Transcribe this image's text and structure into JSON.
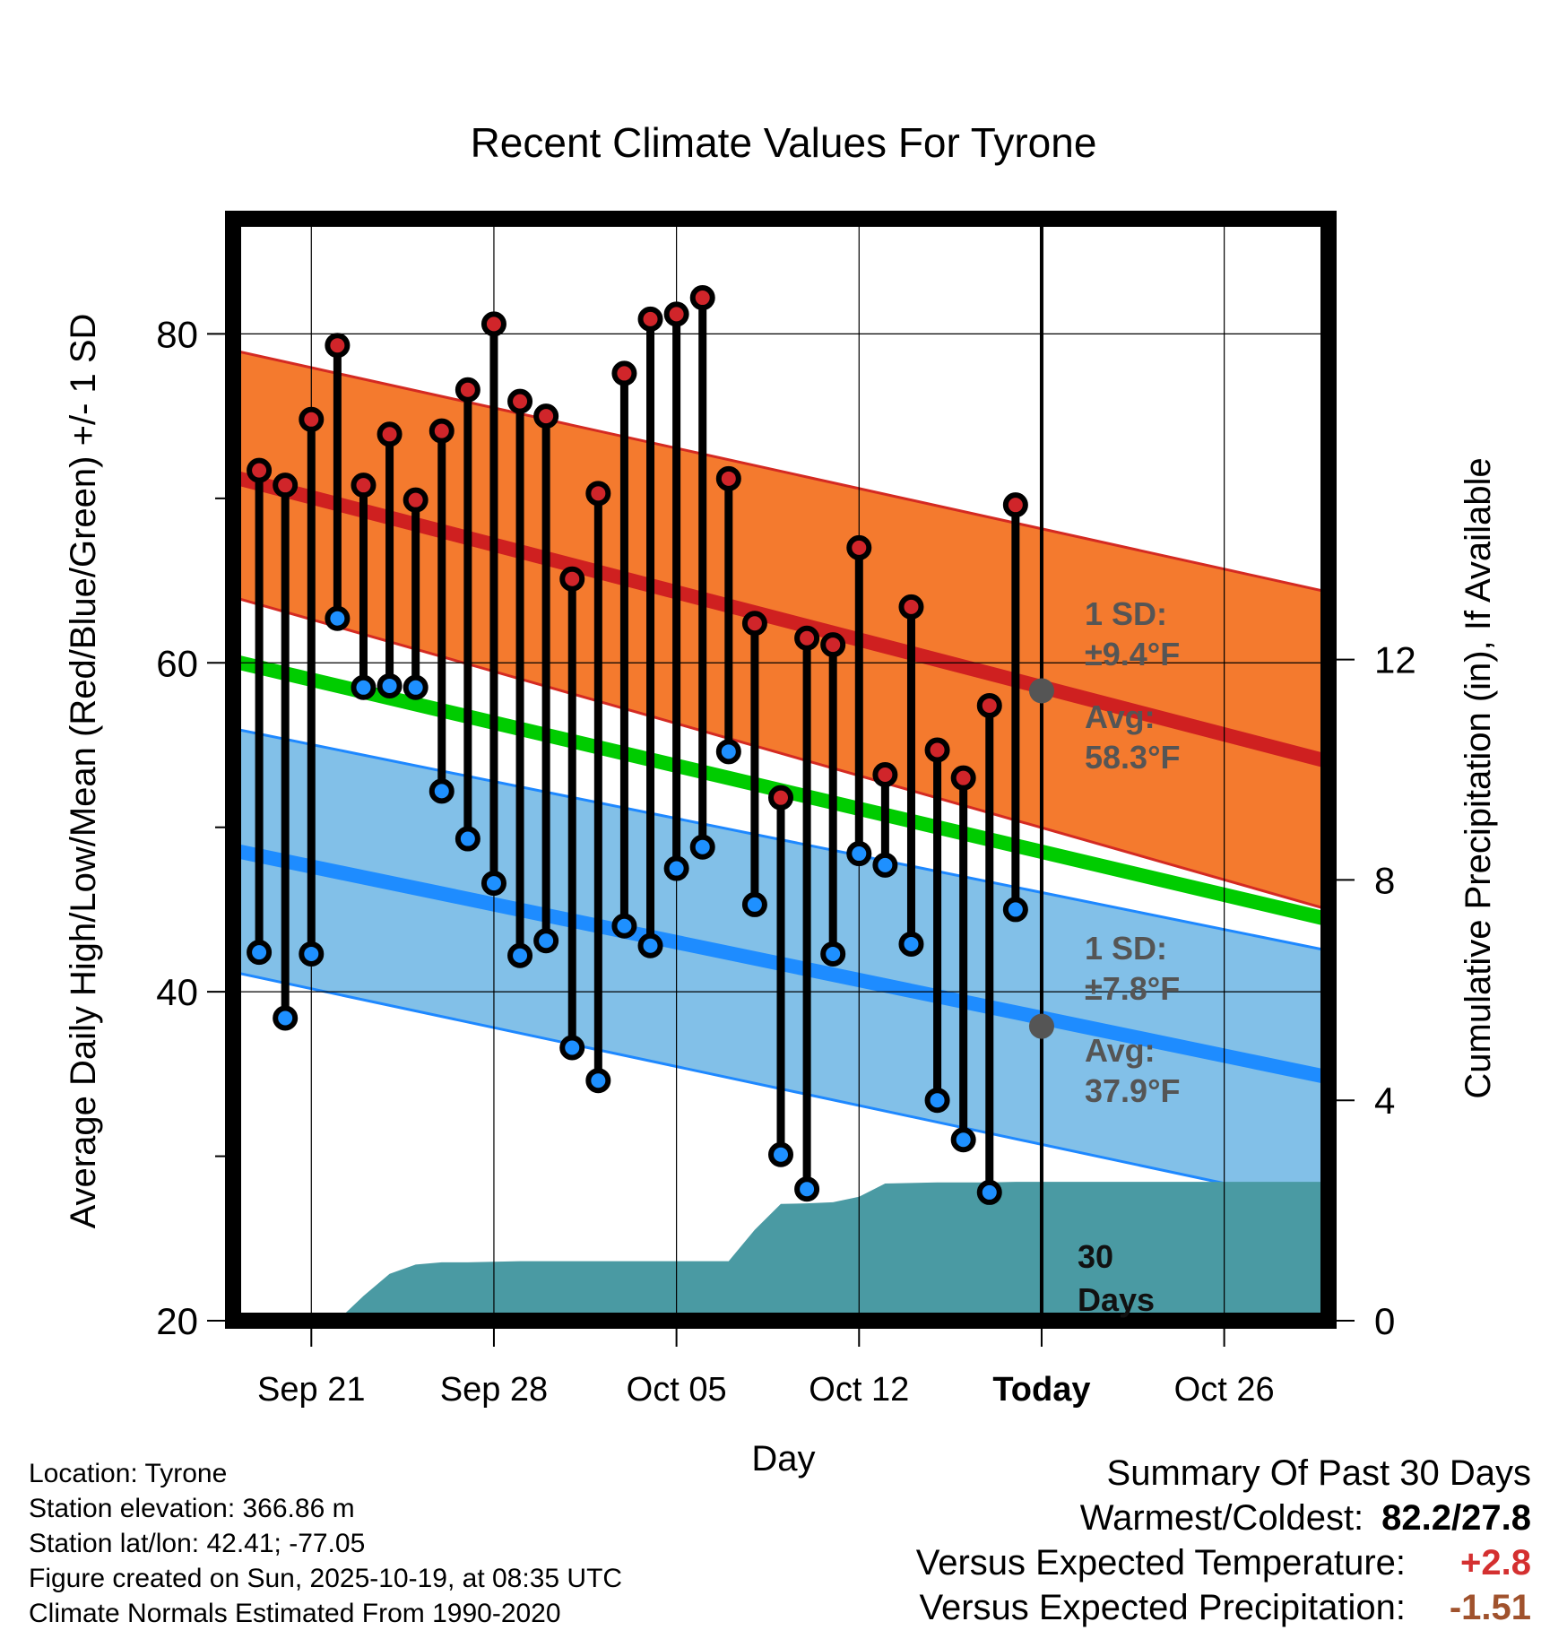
{
  "chart_data": {
    "type": "line",
    "title": "Recent Climate Values For Tyrone",
    "xlabel": "Day",
    "ylabel_left": "Average Daily High/Low/Mean (Red/Blue/Green) +/- 1 SD",
    "ylabel_right": "Cumulative Precipitation (in), If Available",
    "ylim_left": [
      20,
      87
    ],
    "ylim_right": [
      0,
      20
    ],
    "x_range_days": [
      -3,
      39
    ],
    "left_ticks": [
      "20",
      "40",
      "60",
      "80"
    ],
    "left_tick_values": [
      20,
      40,
      60,
      80
    ],
    "right_ticks": [
      "0",
      "4",
      "8",
      "12"
    ],
    "right_tick_values": [
      0,
      4,
      8,
      12
    ],
    "x_tick_labels": [
      "Sep 21",
      "Sep 28",
      "Oct 05",
      "Oct 12",
      "Today",
      "Oct 26"
    ],
    "x_tick_days": [
      0,
      7,
      14,
      21,
      28,
      35
    ],
    "today_day": 28,
    "daily_day": [
      -2,
      -1,
      0,
      1,
      2,
      3,
      4,
      5,
      6,
      7,
      8,
      9,
      10,
      11,
      12,
      13,
      14,
      15,
      16,
      17,
      18,
      19,
      20,
      21,
      22,
      23,
      24,
      25,
      26,
      27
    ],
    "daily_high": [
      71.7,
      70.8,
      74.8,
      79.3,
      70.8,
      73.9,
      69.9,
      74.1,
      76.6,
      80.6,
      75.9,
      75.0,
      65.1,
      70.3,
      77.6,
      80.9,
      81.2,
      82.2,
      71.2,
      62.4,
      51.8,
      61.5,
      61.1,
      67.0,
      53.2,
      63.4,
      54.7,
      53.0,
      57.4,
      69.6
    ],
    "daily_low": [
      42.4,
      38.4,
      42.3,
      62.7,
      58.5,
      58.6,
      58.5,
      52.2,
      49.3,
      46.6,
      42.2,
      43.1,
      36.6,
      34.6,
      44.0,
      42.8,
      47.5,
      48.8,
      54.6,
      45.3,
      30.1,
      28.0,
      42.3,
      48.4,
      47.7,
      42.9,
      33.4,
      31.0,
      27.8,
      45.0
    ],
    "normal_high": {
      "start_day": -3,
      "end_day": 39,
      "start": 71.3,
      "end": 54.0
    },
    "normal_high_sd_upper": {
      "start": 79.0,
      "end": 64.3
    },
    "normal_high_sd_lower": {
      "start": 64.0,
      "end": 45.0
    },
    "normal_mean": {
      "start": 60.1,
      "end": 44.4
    },
    "normal_low": {
      "start": 48.6,
      "end": 34.8
    },
    "normal_low_sd_upper": {
      "start": 56.0,
      "end": 42.5
    },
    "normal_low_sd_lower": {
      "start": 41.2,
      "end": 27.0
    },
    "cumulative_precip": {
      "x": [
        1.0,
        2.0,
        3.0,
        4.0,
        5.0,
        6.0,
        7.0,
        8.0,
        9.0,
        10.0,
        11.0,
        12.0,
        13.0,
        14.0,
        15.0,
        16.0,
        17.0,
        18.0,
        19.0,
        20.0,
        21.0,
        22.0,
        23.0,
        24.0,
        25.0,
        26.0,
        27.0,
        28.0,
        39.0
      ],
      "y": [
        0.0,
        0.45,
        0.85,
        1.02,
        1.06,
        1.06,
        1.07,
        1.08,
        1.08,
        1.08,
        1.08,
        1.08,
        1.08,
        1.08,
        1.08,
        1.08,
        1.65,
        2.12,
        2.13,
        2.15,
        2.25,
        2.49,
        2.5,
        2.51,
        2.51,
        2.51,
        2.52,
        2.52,
        2.52
      ]
    }
  },
  "annotations": {
    "high_sd_label": "1 SD:",
    "high_sd_value": "±9.4°F",
    "high_avg_label": "Avg:",
    "high_avg_value": "58.3°F",
    "low_sd_label": "1 SD:",
    "low_sd_value": "±7.8°F",
    "low_avg_label": "Avg:",
    "low_avg_value": "37.9°F",
    "period_number": "30",
    "period_unit": "Days"
  },
  "info": {
    "location": "Location: Tyrone",
    "elevation": "Station elevation: 366.86 m",
    "latlon": "Station lat/lon: 42.41; -77.05",
    "created": "Figure created on Sun, 2025-10-19, at 08:35 UTC",
    "normals": "Climate Normals Estimated From 1990-2020"
  },
  "summary": {
    "heading": "Summary Of Past 30 Days",
    "warmest_label": "Warmest/Coldest:",
    "warmest_value": "82.2/27.8",
    "temp_label": "Versus Expected Temperature:",
    "temp_value": "+2.8",
    "precip_label": "Versus Expected Precipitation:",
    "precip_value": "-1.51"
  },
  "colors": {
    "high_band": "#f47a2e",
    "high_band_edge": "#d42a22",
    "high_normal": "#cf2020",
    "mean_normal": "#00cc00",
    "low_band": "#82c0e8",
    "low_band_edge": "#1e88ff",
    "low_normal": "#1e8cff",
    "precip_fill": "#4a9aa3",
    "high_dot": "#d0252a",
    "low_dot": "#1e90ff",
    "annotation_text": "#555555",
    "positive_value": "#d43030",
    "negative_value": "#a0522d"
  }
}
